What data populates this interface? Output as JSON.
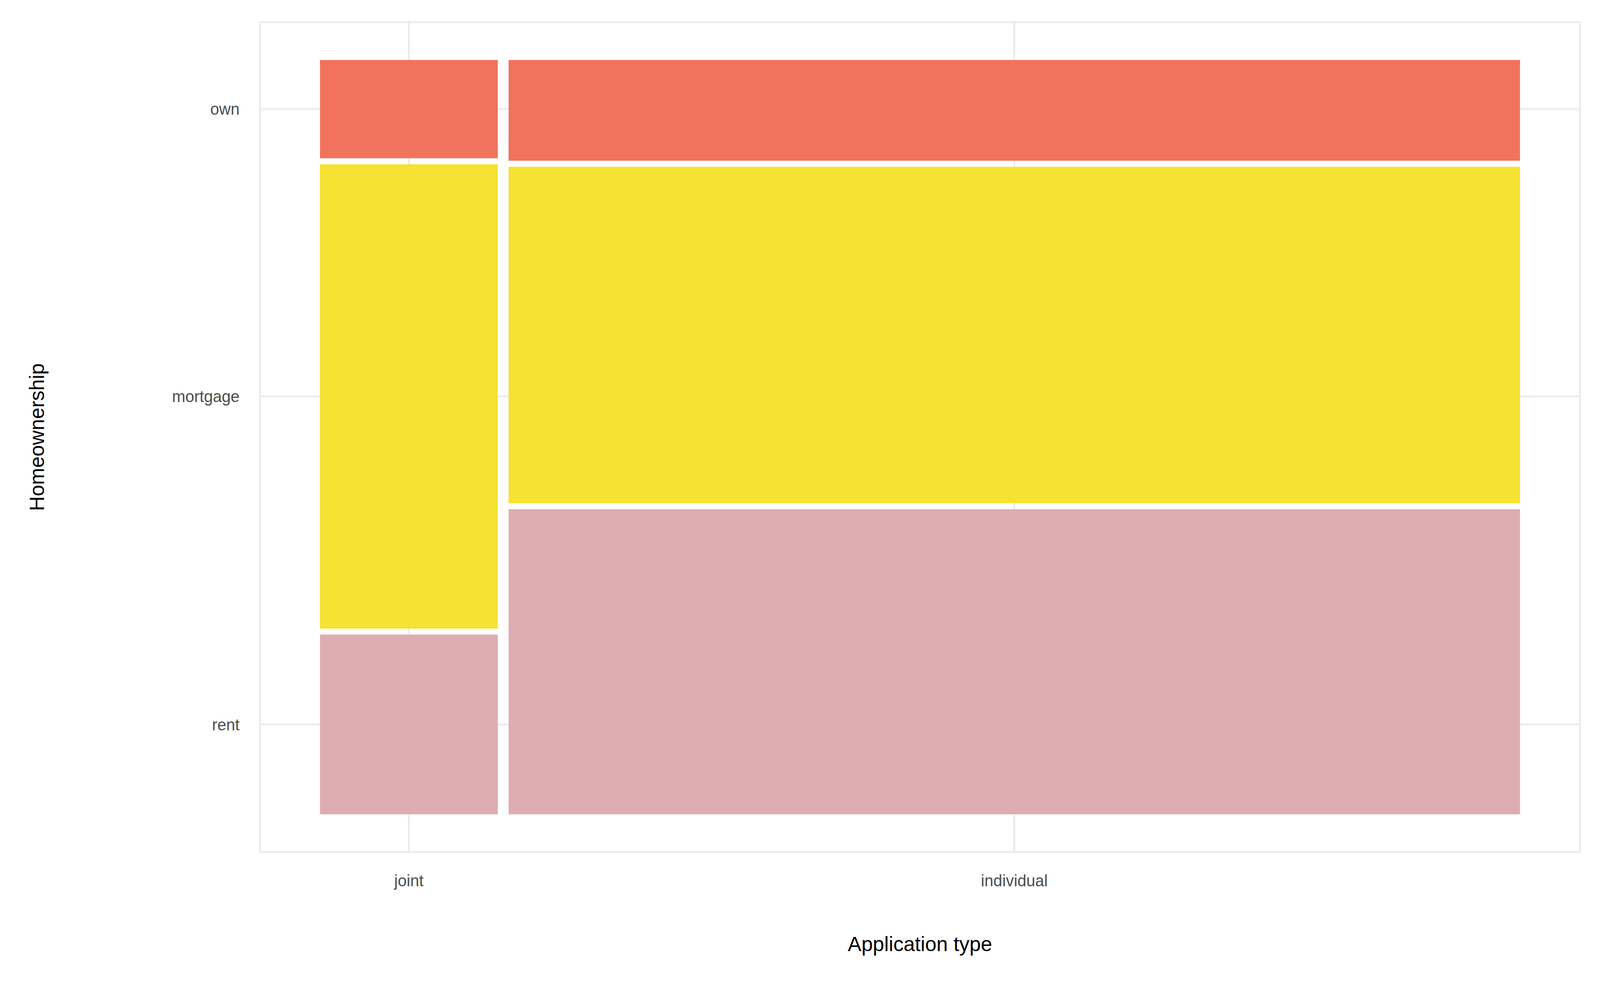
{
  "chart_data": {
    "type": "mosaic",
    "x_label": "Application type",
    "y_label": "Homeownership",
    "categories": [
      "joint",
      "individual"
    ],
    "series": [
      {
        "name": "rent",
        "color": "#DFADB1",
        "values": [
          362,
          3496
        ]
      },
      {
        "name": "mortgage",
        "color": "#F5E232",
        "values": [
          935,
          3854
        ]
      },
      {
        "name": "own",
        "color": "#F1735D",
        "values": [
          198,
          1155
        ]
      }
    ],
    "grid": true,
    "legend": false
  }
}
